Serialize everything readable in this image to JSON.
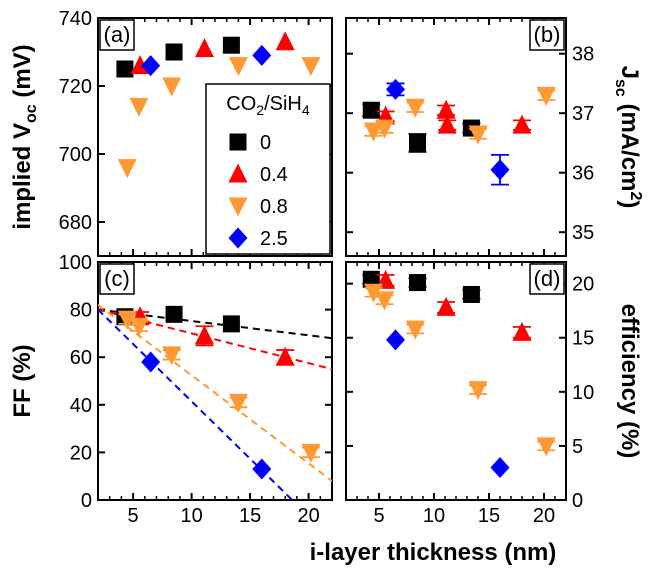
{
  "figure": {
    "xlabel": "i-layer thickness (nm)",
    "legend_title": "CO2/SiH4"
  },
  "chart_data": [
    {
      "panel": "(a)",
      "type": "scatter",
      "ylabel": "implied Voc (mV)",
      "ylabel_parts": {
        "base": "implied V",
        "sub": "oc",
        "unit": " (mV)"
      },
      "xlim": [
        2,
        22
      ],
      "ylim": [
        670,
        740
      ],
      "xticks": [
        5,
        10,
        15,
        20
      ],
      "yticks": [
        680,
        700,
        720,
        740
      ],
      "series": [
        {
          "name": "0",
          "color": "#000000",
          "marker": "square",
          "x": [
            4.3,
            8.5,
            13.4
          ],
          "y": [
            725,
            730,
            732
          ],
          "err": [
            0,
            0,
            0
          ]
        },
        {
          "name": "0.4",
          "color": "#ff0000",
          "marker": "triangle-up",
          "x": [
            5.6,
            11.1,
            18.0
          ],
          "y": [
            726,
            731,
            733
          ],
          "err": [
            0,
            0,
            0
          ]
        },
        {
          "name": "0.8",
          "color": "#ff9933",
          "marker": "triangle-down",
          "x": [
            4.5,
            5.5,
            8.3,
            14.0,
            20.2
          ],
          "y": [
            696,
            714,
            720,
            726,
            726
          ],
          "err": [
            0,
            0,
            0,
            0,
            0
          ]
        },
        {
          "name": "2.5",
          "color": "#0000ff",
          "marker": "diamond",
          "x": [
            6.5,
            16.0
          ],
          "y": [
            726,
            729
          ],
          "err": [
            0,
            0
          ]
        }
      ]
    },
    {
      "panel": "(b)",
      "type": "scatter",
      "ylabel": "Jsc (mA/cm2)",
      "ylabel_parts": {
        "base": "J",
        "sub": "sc",
        "unit": " (mA/cm",
        "sup": "2",
        "close": ")"
      },
      "xlim": [
        2,
        22
      ],
      "ylim": [
        34.6,
        38.6
      ],
      "xticks": [
        5,
        10,
        15,
        20
      ],
      "yticks": [
        35,
        36,
        37,
        38
      ],
      "series": [
        {
          "name": "0",
          "color": "#000000",
          "marker": "square",
          "x": [
            4.3,
            8.5,
            13.4
          ],
          "y": [
            37.05,
            36.5,
            36.75
          ],
          "err": [
            0.1,
            0.15,
            0.08
          ]
        },
        {
          "name": "0.4",
          "color": "#ff0000",
          "marker": "triangle-up",
          "x": [
            5.6,
            11.1,
            11.2,
            18.0
          ],
          "y": [
            36.95,
            37.05,
            36.8,
            36.8
          ],
          "err": [
            0.08,
            0.08,
            0.08,
            0.08
          ]
        },
        {
          "name": "0.8",
          "color": "#ff9933",
          "marker": "triangle-down",
          "x": [
            4.5,
            5.5,
            8.3,
            14.0,
            20.2
          ],
          "y": [
            36.7,
            36.75,
            37.1,
            36.65,
            37.3
          ],
          "err": [
            0.08,
            0.08,
            0.08,
            0.08,
            0.08
          ]
        },
        {
          "name": "2.5",
          "color": "#0000ff",
          "marker": "diamond",
          "x": [
            6.5,
            16.0
          ],
          "y": [
            37.4,
            36.05
          ],
          "err": [
            0.1,
            0.25
          ]
        }
      ]
    },
    {
      "panel": "(c)",
      "type": "scatter",
      "ylabel": "FF (%)",
      "xlim": [
        2,
        22
      ],
      "ylim": [
        0,
        100
      ],
      "xticks": [
        5,
        10,
        15,
        20
      ],
      "yticks": [
        0,
        20,
        40,
        60,
        80,
        100
      ],
      "series": [
        {
          "name": "0",
          "color": "#000000",
          "marker": "square",
          "x": [
            4.3,
            8.5,
            13.4
          ],
          "y": [
            77,
            78,
            74
          ],
          "err": [
            0,
            0,
            0
          ],
          "fit": [
            [
              2,
              80
            ],
            [
              22,
              68
            ]
          ]
        },
        {
          "name": "0.4",
          "color": "#ff0000",
          "marker": "triangle-up",
          "x": [
            5.6,
            11.1,
            18.0
          ],
          "y": [
            77,
            69,
            60
          ],
          "err": [
            2,
            4,
            3
          ],
          "fit": [
            [
              2,
              80
            ],
            [
              22,
              55
            ]
          ]
        },
        {
          "name": "0.8",
          "color": "#ff9933",
          "marker": "triangle-down",
          "x": [
            4.5,
            5.5,
            8.3,
            14.0,
            20.2
          ],
          "y": [
            76,
            73,
            61,
            41,
            20
          ],
          "err": [
            2,
            2,
            2,
            2,
            2
          ],
          "fit": [
            [
              2,
              82
            ],
            [
              22,
              8
            ]
          ]
        },
        {
          "name": "2.5",
          "color": "#0000ff",
          "marker": "diamond",
          "x": [
            6.5,
            16.0
          ],
          "y": [
            58,
            13
          ],
          "err": [
            0,
            0
          ],
          "fit": [
            [
              2,
              80
            ],
            [
              18.6,
              0
            ]
          ]
        }
      ]
    },
    {
      "panel": "(d)",
      "type": "scatter",
      "ylabel": "efficiency (%)",
      "xlim": [
        2,
        22
      ],
      "ylim": [
        0,
        22
      ],
      "xticks": [
        5,
        10,
        15,
        20
      ],
      "yticks": [
        0,
        5,
        10,
        15,
        20
      ],
      "series": [
        {
          "name": "0",
          "color": "#000000",
          "marker": "square",
          "x": [
            4.3,
            8.5,
            13.4
          ],
          "y": [
            20.4,
            20.1,
            19.0
          ],
          "err": [
            0.4,
            0.4,
            0.4
          ]
        },
        {
          "name": "0.4",
          "color": "#ff0000",
          "marker": "triangle-up",
          "x": [
            5.6,
            11.1,
            18.0
          ],
          "y": [
            20.3,
            17.8,
            15.5
          ],
          "err": [
            0.5,
            0.5,
            0.5
          ]
        },
        {
          "name": "0.8",
          "color": "#ff9933",
          "marker": "triangle-down",
          "x": [
            4.5,
            5.5,
            8.3,
            14.0,
            20.2
          ],
          "y": [
            19.2,
            18.5,
            15.8,
            10.2,
            5.0
          ],
          "err": [
            0.4,
            0.4,
            0.4,
            0.4,
            0.4
          ]
        },
        {
          "name": "2.5",
          "color": "#0000ff",
          "marker": "diamond",
          "x": [
            6.5,
            16.0
          ],
          "y": [
            14.8,
            3.0
          ],
          "err": [
            0,
            0
          ]
        }
      ]
    }
  ]
}
